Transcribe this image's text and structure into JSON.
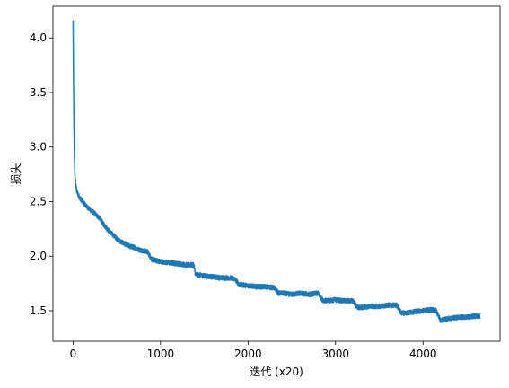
{
  "chart_data": {
    "type": "line",
    "title": "",
    "xlabel": "迭代 (x20)",
    "ylabel": "损失",
    "xlim": [
      -230,
      4880
    ],
    "ylim": [
      1.22,
      4.29
    ],
    "xticks": [
      0,
      1000,
      2000,
      3000,
      4000
    ],
    "yticks": [
      1.5,
      2.0,
      2.5,
      3.0,
      3.5,
      4.0
    ],
    "ytick_labels": [
      "1.5",
      "2.0",
      "2.5",
      "3.0",
      "3.5",
      "4.0"
    ],
    "grid": false,
    "legend": "none",
    "series": [
      {
        "color": "#1f77b4",
        "x": [
          0,
          5,
          10,
          15,
          20,
          30,
          40,
          60,
          80,
          100,
          150,
          200,
          250,
          300,
          350,
          400,
          450,
          500,
          550,
          600,
          650,
          700,
          750,
          800,
          850,
          900,
          950,
          1000,
          1100,
          1200,
          1300,
          1380,
          1400,
          1500,
          1600,
          1700,
          1800,
          1850,
          1900,
          2000,
          2100,
          2200,
          2300,
          2350,
          2400,
          2500,
          2600,
          2700,
          2800,
          2850,
          2900,
          3000,
          3100,
          3200,
          3250,
          3300,
          3400,
          3500,
          3600,
          3700,
          3750,
          3800,
          3900,
          4000,
          4100,
          4150,
          4200,
          4300,
          4400,
          4500,
          4600,
          4650
        ],
        "values": [
          4.16,
          3.6,
          3.2,
          2.9,
          2.75,
          2.66,
          2.6,
          2.56,
          2.53,
          2.51,
          2.46,
          2.42,
          2.39,
          2.35,
          2.29,
          2.24,
          2.2,
          2.16,
          2.13,
          2.11,
          2.09,
          2.08,
          2.06,
          2.05,
          2.04,
          1.97,
          1.96,
          1.95,
          1.94,
          1.93,
          1.92,
          1.92,
          1.83,
          1.82,
          1.81,
          1.8,
          1.8,
          1.79,
          1.74,
          1.73,
          1.72,
          1.72,
          1.71,
          1.66,
          1.66,
          1.65,
          1.66,
          1.65,
          1.66,
          1.6,
          1.59,
          1.6,
          1.59,
          1.59,
          1.53,
          1.53,
          1.54,
          1.54,
          1.55,
          1.55,
          1.48,
          1.48,
          1.49,
          1.5,
          1.51,
          1.5,
          1.41,
          1.43,
          1.44,
          1.44,
          1.45,
          1.45
        ],
        "noise_amplitude": 0.022
      }
    ]
  }
}
